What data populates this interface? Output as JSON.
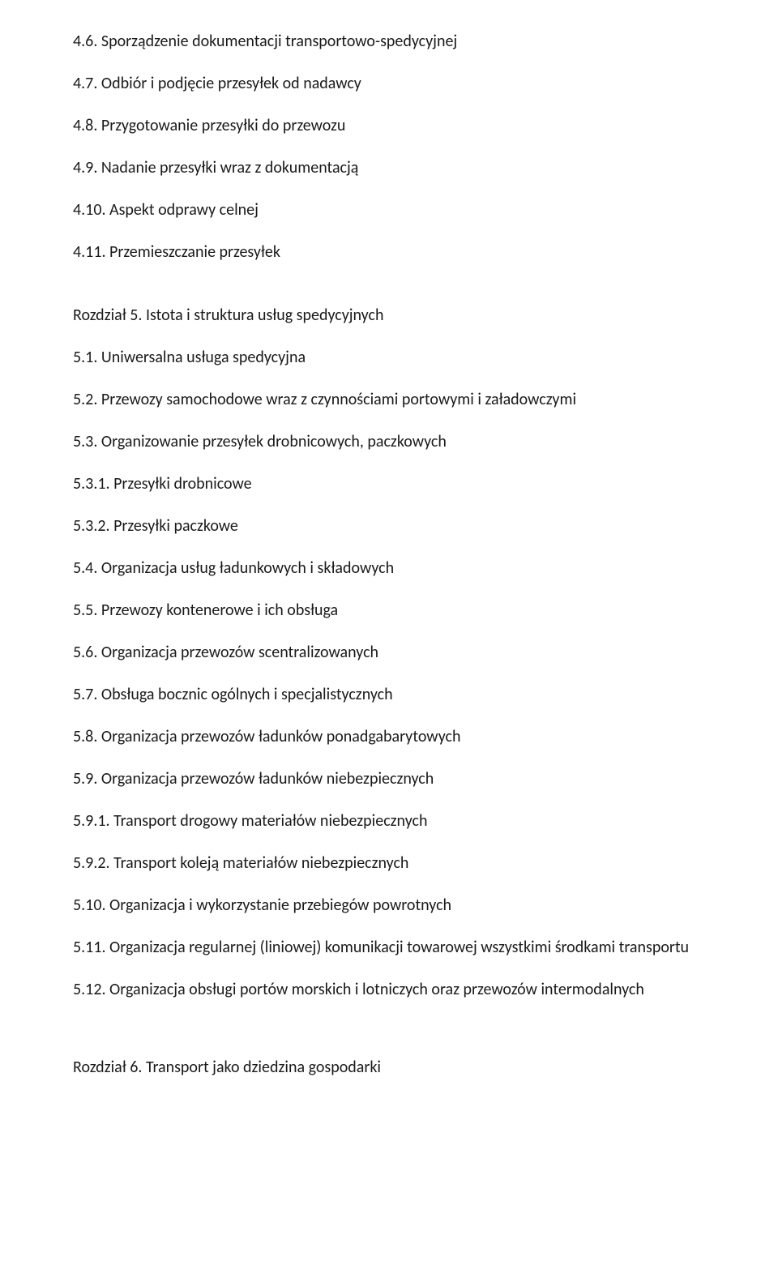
{
  "font": {
    "family": "Calibri",
    "size_pt": 15,
    "color": "#1a1a1a"
  },
  "background_color": "#ffffff",
  "lines": [
    {
      "key": "l1",
      "text": "4.6. Sporządzenie dokumentacji transportowo-spedycyjnej"
    },
    {
      "key": "l2",
      "text": "4.7. Odbiór i podjęcie przesyłek od nadawcy"
    },
    {
      "key": "l3",
      "text": "4.8. Przygotowanie przesyłki do przewozu"
    },
    {
      "key": "l4",
      "text": "4.9. Nadanie przesyłki wraz z dokumentacją"
    },
    {
      "key": "l5",
      "text": "4.10. Aspekt odprawy celnej"
    },
    {
      "key": "l6",
      "text": "4.11. Przemieszczanie przesyłek"
    },
    {
      "key": "ch5",
      "text": "Rozdział 5. Istota i struktura usług spedycyjnych"
    },
    {
      "key": "l7",
      "text": "5.1. Uniwersalna usługa spedycyjna"
    },
    {
      "key": "l8",
      "text": "5.2. Przewozy samochodowe wraz z czynnościami portowymi i załadowczymi"
    },
    {
      "key": "l9",
      "text": "5.3. Organizowanie przesyłek drobnicowych, paczkowych"
    },
    {
      "key": "l10",
      "text": "5.3.1. Przesyłki drobnicowe"
    },
    {
      "key": "l11",
      "text": "5.3.2. Przesyłki paczkowe"
    },
    {
      "key": "l12",
      "text": "5.4. Organizacja usług ładunkowych i składowych"
    },
    {
      "key": "l13",
      "text": "5.5. Przewozy kontenerowe i ich obsługa"
    },
    {
      "key": "l14",
      "text": "5.6. Organizacja przewozów scentralizowanych"
    },
    {
      "key": "l15",
      "text": "5.7. Obsługa bocznic ogólnych i specjalistycznych"
    },
    {
      "key": "l16",
      "text": "5.8. Organizacja przewozów ładunków ponadgabarytowych"
    },
    {
      "key": "l17",
      "text": "5.9. Organizacja przewozów ładunków niebezpiecznych"
    },
    {
      "key": "l18",
      "text": "5.9.1. Transport drogowy materiałów niebezpiecznych"
    },
    {
      "key": "l19",
      "text": "5.9.2. Transport koleją materiałów niebezpiecznych"
    },
    {
      "key": "l20",
      "text": "5.10. Organizacja i wykorzystanie przebiegów powrotnych"
    },
    {
      "key": "l21",
      "text": "5.11. Organizacja regularnej (liniowej) komunikacji towarowej wszystkimi środkami transportu"
    },
    {
      "key": "l22",
      "text": "5.12. Organizacja obsługi portów morskich i lotniczych oraz przewozów intermodalnych"
    },
    {
      "key": "ch6",
      "text": "Rozdział 6. Transport jako dziedzina gospodarki"
    }
  ]
}
